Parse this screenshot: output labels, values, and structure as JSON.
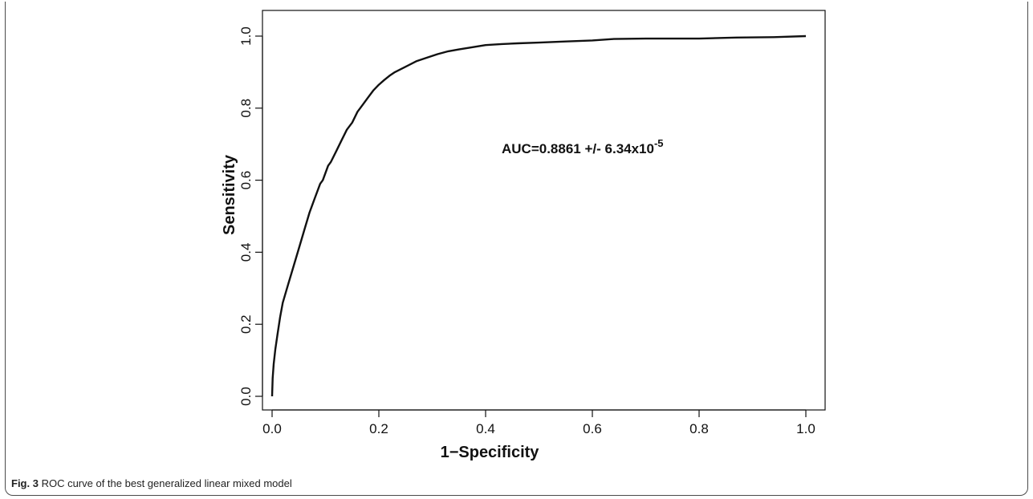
{
  "caption": {
    "label": "Fig. 3",
    "text": "ROC curve of the best generalized linear mixed model"
  },
  "chart_data": {
    "type": "line",
    "title": "",
    "xlabel": "1−Specificity",
    "ylabel": "Sensitivity",
    "xlim": [
      0,
      1
    ],
    "ylim": [
      0,
      1
    ],
    "xticks": [
      "0.0",
      "0.2",
      "0.4",
      "0.6",
      "0.8",
      "1.0"
    ],
    "yticks": [
      "0.0",
      "0.2",
      "0.4",
      "0.6",
      "0.8",
      "1.0"
    ],
    "grid": false,
    "annotation": {
      "text": "AUC=0.8861 +/- 6.34x10",
      "superscript": "-5"
    },
    "series": [
      {
        "x": [
          0.0,
          0.001,
          0.003,
          0.006,
          0.01,
          0.015,
          0.02,
          0.03,
          0.04,
          0.05,
          0.06,
          0.07,
          0.08,
          0.09,
          0.095,
          0.1,
          0.105,
          0.11,
          0.12,
          0.13,
          0.14,
          0.15,
          0.16,
          0.17,
          0.18,
          0.19,
          0.2,
          0.21,
          0.22,
          0.23,
          0.25,
          0.27,
          0.29,
          0.31,
          0.33,
          0.35,
          0.37,
          0.4,
          0.43,
          0.46,
          0.5,
          0.55,
          0.6,
          0.64,
          0.7,
          0.8,
          0.87,
          0.94,
          1.0
        ],
        "y": [
          0.0,
          0.05,
          0.09,
          0.13,
          0.17,
          0.22,
          0.26,
          0.31,
          0.36,
          0.41,
          0.46,
          0.51,
          0.55,
          0.59,
          0.6,
          0.62,
          0.64,
          0.65,
          0.68,
          0.71,
          0.74,
          0.76,
          0.79,
          0.81,
          0.83,
          0.85,
          0.865,
          0.878,
          0.89,
          0.9,
          0.915,
          0.93,
          0.94,
          0.95,
          0.958,
          0.963,
          0.968,
          0.975,
          0.978,
          0.98,
          0.982,
          0.985,
          0.988,
          0.992,
          0.993,
          0.993,
          0.996,
          0.997,
          1.0
        ]
      }
    ]
  }
}
